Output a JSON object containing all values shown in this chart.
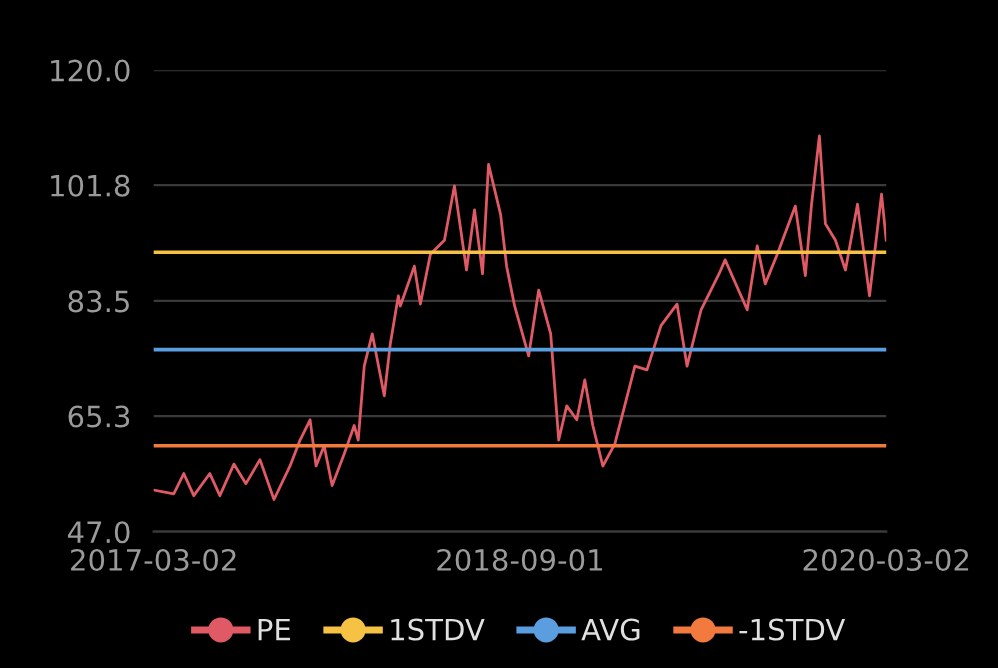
{
  "chart_data": {
    "type": "line",
    "xlim": [
      "2017-03-02",
      "2020-03-02"
    ],
    "xticks": [
      "2017-03-02",
      "2018-09-01",
      "2020-03-02"
    ],
    "ylim": [
      47.0,
      120.0
    ],
    "yticks": [
      {
        "value": 47.0,
        "label": "47.0"
      },
      {
        "value": 65.3,
        "label": "65.3"
      },
      {
        "value": 83.5,
        "label": "83.5"
      },
      {
        "value": 101.8,
        "label": "101.8"
      },
      {
        "value": 120.0,
        "label": "120.0"
      }
    ],
    "grid": "y",
    "legend": "bottom",
    "series": [
      {
        "name": "PE",
        "color": "#e05a65",
        "x": [
          "2017-03-02",
          "2017-04-01",
          "2017-04-16",
          "2017-05-01",
          "2017-05-25",
          "2017-06-09",
          "2017-06-30",
          "2017-07-18",
          "2017-08-08",
          "2017-08-29",
          "2017-09-22",
          "2017-10-07",
          "2017-10-22",
          "2017-10-31",
          "2017-11-12",
          "2017-11-24",
          "2017-12-12",
          "2017-12-27",
          "2018-01-02",
          "2018-01-11",
          "2018-01-23",
          "2018-02-10",
          "2018-02-19",
          "2018-03-03",
          "2018-03-06",
          "2018-03-27",
          "2018-04-05",
          "2018-04-20",
          "2018-05-11",
          "2018-05-26",
          "2018-06-13",
          "2018-06-25",
          "2018-07-07",
          "2018-07-16",
          "2018-08-03",
          "2018-08-12",
          "2018-08-24",
          "2018-09-14",
          "2018-09-29",
          "2018-10-17",
          "2018-10-29",
          "2018-11-10",
          "2018-11-25",
          "2018-12-07",
          "2018-12-19",
          "2019-01-03",
          "2019-01-21",
          "2019-02-20",
          "2019-03-10",
          "2019-03-31",
          "2019-04-24",
          "2019-05-09",
          "2019-05-30",
          "2019-06-26",
          "2019-07-05",
          "2019-08-07",
          "2019-08-22",
          "2019-09-03",
          "2019-09-21",
          "2019-10-18",
          "2019-11-02",
          "2019-11-11",
          "2019-11-23",
          "2019-12-02",
          "2019-12-17",
          "2020-01-01",
          "2020-01-19",
          "2020-02-06",
          "2020-02-24",
          "2020-03-02"
        ],
        "values": [
          53.6,
          53.0,
          56.2,
          52.7,
          56.2,
          52.7,
          57.7,
          54.6,
          58.4,
          52.1,
          57.4,
          61.5,
          64.7,
          57.4,
          60.6,
          54.3,
          59.3,
          63.8,
          61.5,
          73.2,
          78.3,
          68.5,
          76.7,
          84.3,
          82.7,
          89.0,
          83.0,
          90.9,
          93.1,
          101.7,
          88.4,
          97.9,
          87.8,
          105.1,
          97.2,
          89.0,
          82.7,
          74.8,
          85.2,
          78.3,
          61.5,
          66.9,
          64.7,
          71.0,
          63.8,
          57.4,
          60.9,
          73.2,
          72.6,
          79.6,
          83.0,
          73.2,
          82.1,
          87.8,
          90.0,
          82.1,
          92.2,
          86.2,
          90.9,
          98.5,
          87.5,
          98.5,
          109.6,
          95.7,
          93.1,
          88.4,
          98.8,
          84.3,
          100.4,
          93.1
        ]
      },
      {
        "name": "1STDV",
        "color": "#f6c244",
        "x": [
          "2017-03-02",
          "2020-03-02"
        ],
        "values": [
          91.2,
          91.2
        ]
      },
      {
        "name": "AVG",
        "color": "#5b9ee0",
        "x": [
          "2017-03-02",
          "2020-03-02"
        ],
        "values": [
          75.8,
          75.8
        ]
      },
      {
        "name": "-1STDV",
        "color": "#f27a3e",
        "x": [
          "2017-03-02",
          "2020-03-02"
        ],
        "values": [
          60.6,
          60.6
        ]
      }
    ]
  }
}
